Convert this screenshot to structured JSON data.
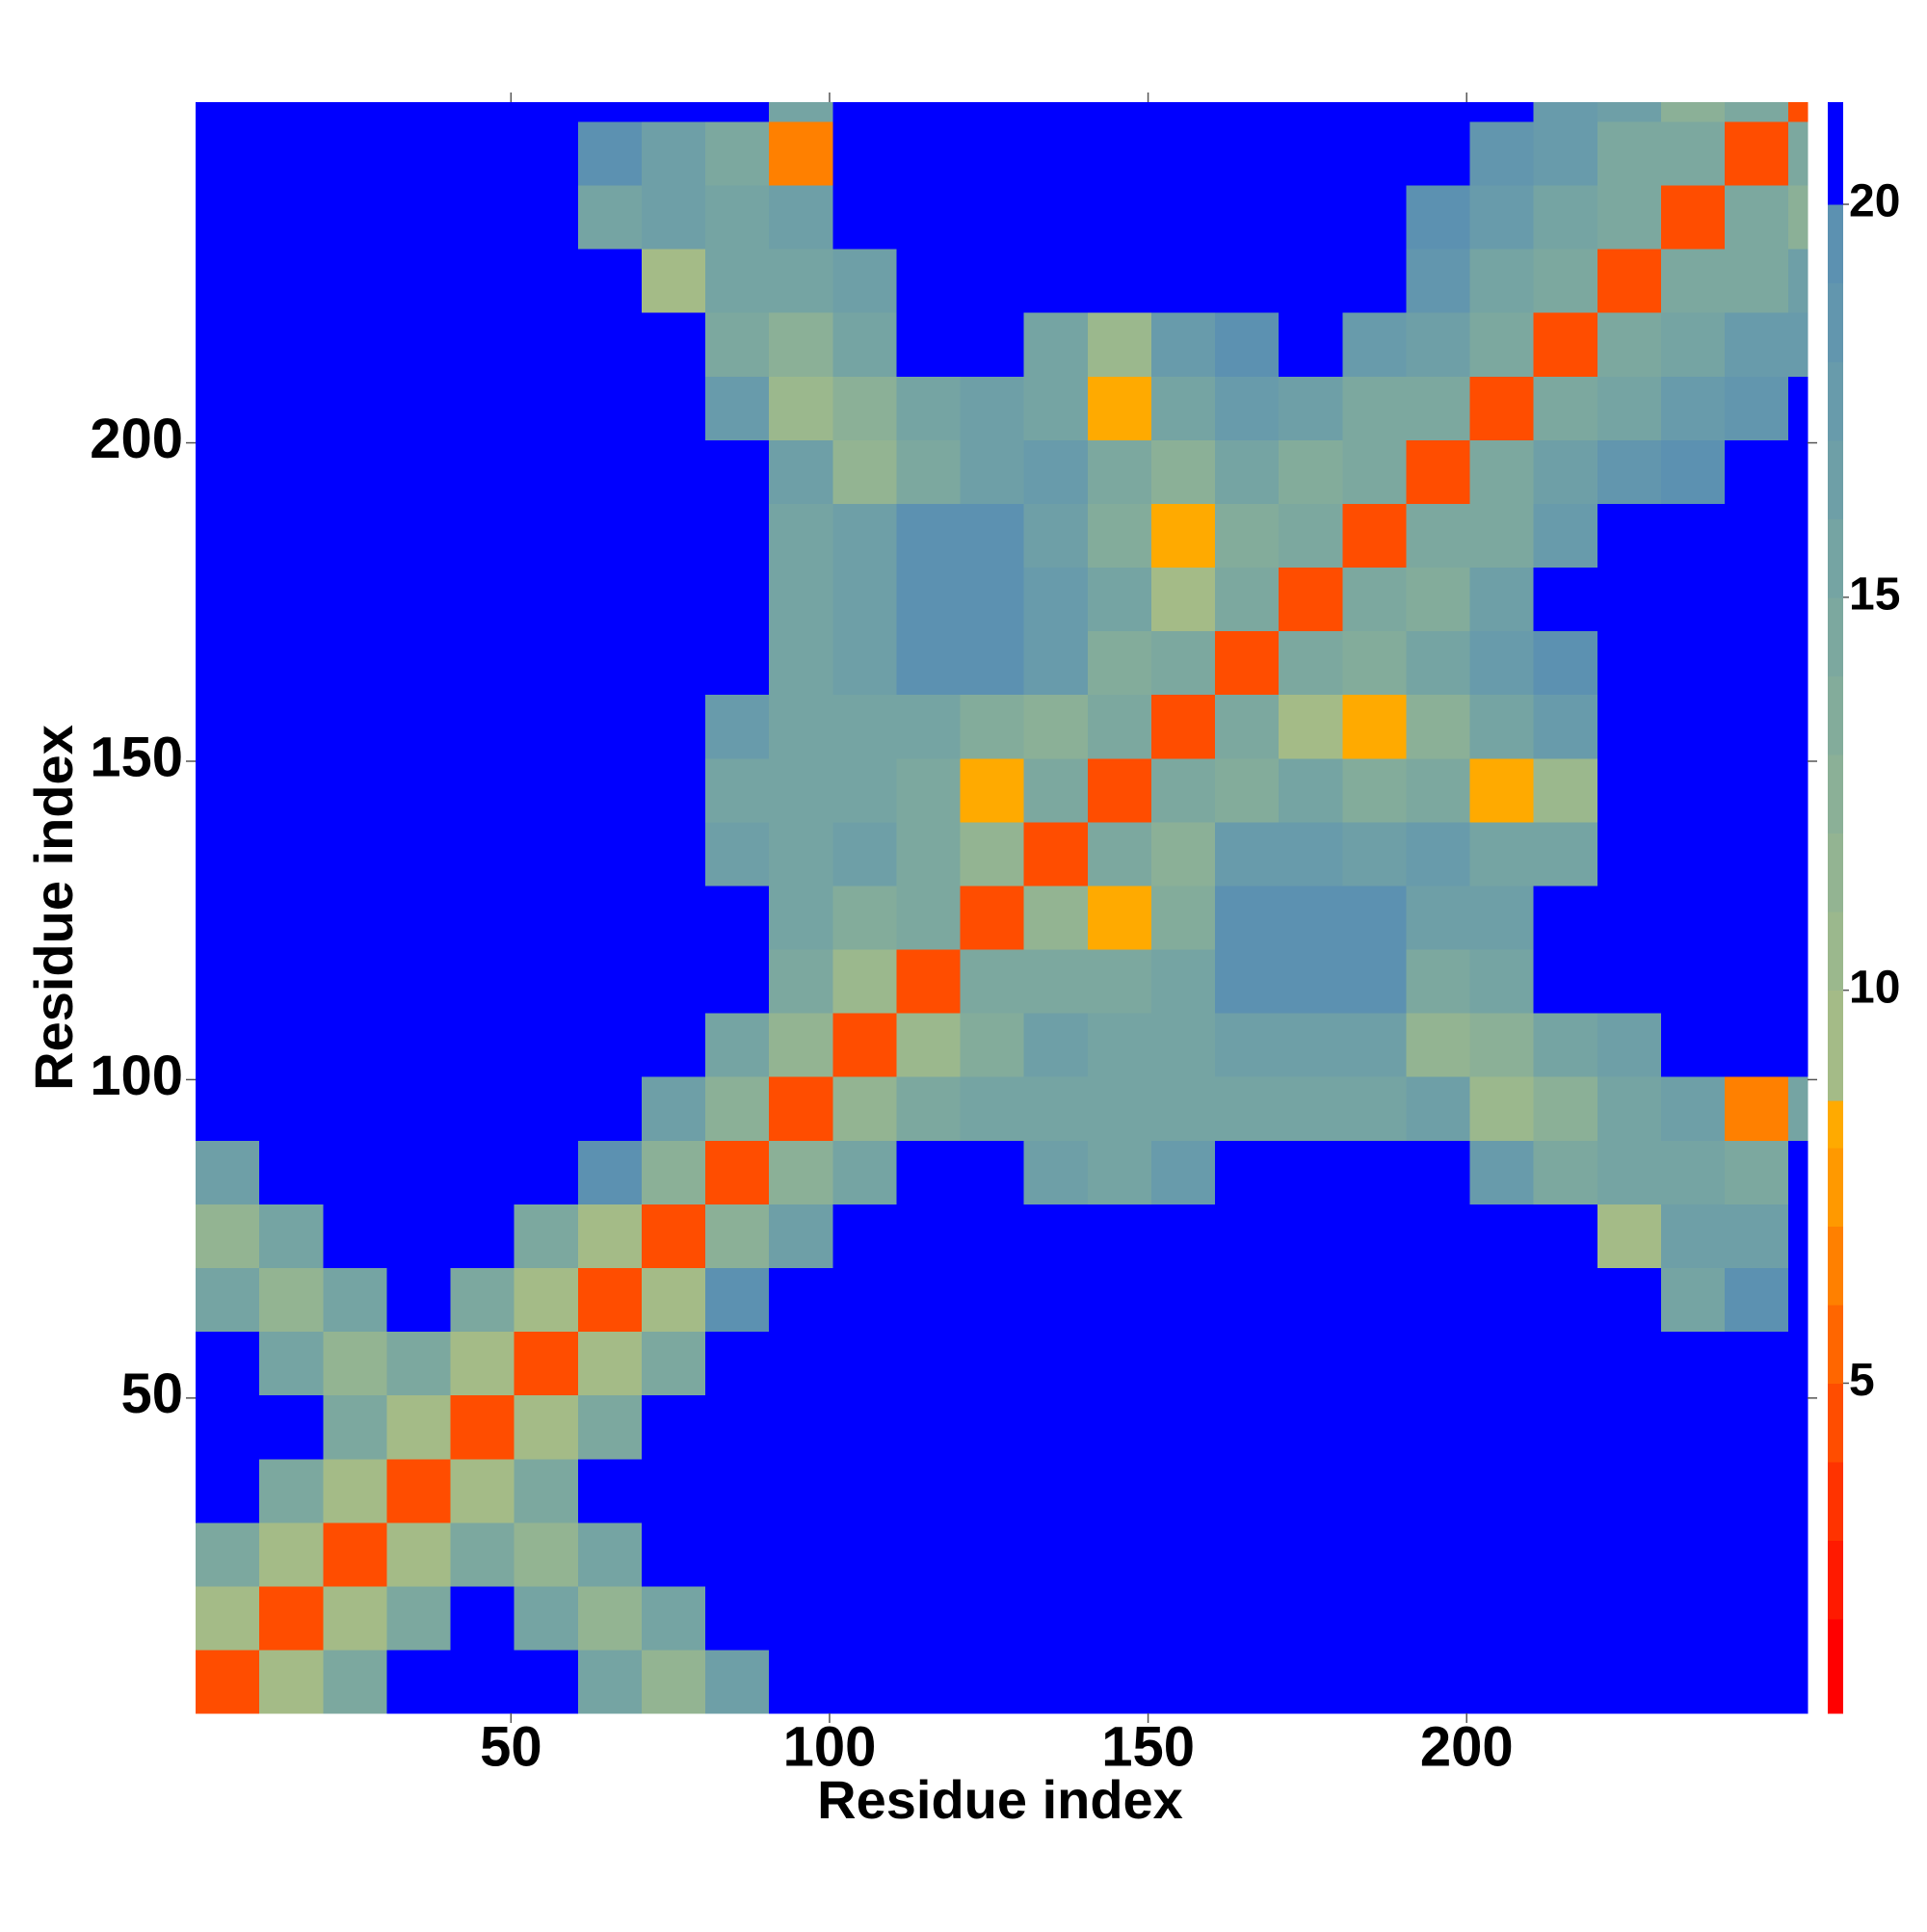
{
  "chart_data": {
    "type": "heatmap",
    "x_label": "Residue index",
    "y_label": "Residue index",
    "x_bins": [
      0.5,
      10.5,
      20.5,
      30.5,
      40.5,
      50.5,
      60.5,
      70.5,
      80.5,
      90.5,
      100.5,
      110.5,
      120.5,
      130.5,
      140.5,
      150.5,
      160.5,
      170.5,
      180.5,
      190.5,
      200.5,
      210.5,
      220.5,
      230.5,
      240.5,
      250.5,
      253.5
    ],
    "y_bins": [
      0.5,
      10.5,
      20.5,
      30.5,
      40.5,
      50.5,
      60.5,
      70.5,
      80.5,
      90.5,
      100.5,
      110.5,
      120.5,
      130.5,
      140.5,
      150.5,
      160.5,
      170.5,
      180.5,
      190.5,
      200.5,
      210.5,
      220.5,
      230.5,
      240.5,
      250.5,
      253.5
    ],
    "xlim": [
      0.5,
      253.5
    ],
    "ylim": [
      0.5,
      253.5
    ],
    "xticks": [
      50,
      100,
      150,
      200
    ],
    "yticks": [
      50,
      100,
      150,
      200
    ],
    "values": [
      [
        4,
        9,
        14,
        21,
        21,
        21,
        15,
        11,
        16,
        21,
        21,
        21,
        21,
        21,
        21,
        21,
        21,
        21,
        21,
        21,
        21,
        21,
        21,
        21,
        20,
        21
      ],
      [
        9,
        4,
        9,
        14,
        21,
        15,
        11,
        15,
        21,
        21,
        21,
        21,
        21,
        21,
        21,
        21,
        21,
        21,
        21,
        21,
        21,
        21,
        21,
        21,
        20,
        21
      ],
      [
        14,
        9,
        4,
        9,
        14,
        11,
        15,
        21,
        21,
        21,
        21,
        21,
        21,
        21,
        21,
        21,
        21,
        21,
        21,
        21,
        21,
        21,
        21,
        21,
        21,
        21
      ],
      [
        21,
        14,
        9,
        4,
        9,
        14,
        21,
        21,
        21,
        21,
        21,
        21,
        21,
        21,
        21,
        21,
        21,
        21,
        21,
        21,
        21,
        21,
        21,
        21,
        21,
        21
      ],
      [
        21,
        21,
        14,
        9,
        4,
        9,
        14,
        21,
        21,
        21,
        21,
        21,
        21,
        21,
        21,
        21,
        21,
        21,
        21,
        21,
        21,
        21,
        21,
        21,
        21,
        21
      ],
      [
        21,
        15,
        11,
        14,
        9,
        4,
        9,
        14,
        21,
        21,
        21,
        21,
        21,
        21,
        21,
        21,
        21,
        21,
        21,
        21,
        21,
        21,
        21,
        21,
        21,
        21
      ],
      [
        15,
        11,
        15,
        21,
        14,
        9,
        4,
        9,
        19,
        21,
        21,
        21,
        21,
        21,
        21,
        21,
        21,
        21,
        21,
        21,
        21,
        21,
        21,
        15,
        19,
        21
      ],
      [
        11,
        15,
        21,
        21,
        21,
        14,
        9,
        4,
        12,
        16,
        21,
        21,
        21,
        21,
        21,
        21,
        21,
        21,
        21,
        21,
        21,
        21,
        9,
        16,
        16,
        21
      ],
      [
        16,
        21,
        21,
        21,
        21,
        21,
        19,
        12,
        4,
        12,
        15,
        21,
        21,
        16,
        15,
        17,
        21,
        21,
        21,
        21,
        17,
        14,
        15,
        15,
        14,
        21
      ],
      [
        21,
        21,
        21,
        21,
        21,
        21,
        21,
        16,
        12,
        4,
        11,
        14,
        15,
        15,
        15,
        15,
        15,
        15,
        15,
        16,
        10,
        12,
        15,
        16,
        6,
        15
      ],
      [
        21,
        21,
        21,
        21,
        21,
        21,
        21,
        21,
        15,
        11,
        4,
        10,
        13,
        16,
        15,
        15,
        16,
        16,
        16,
        11,
        12,
        15,
        16,
        21,
        21,
        21
      ],
      [
        21,
        21,
        21,
        21,
        21,
        21,
        21,
        21,
        21,
        14,
        10,
        4,
        14,
        14,
        14,
        15,
        19,
        19,
        19,
        14,
        15,
        21,
        21,
        21,
        21,
        21
      ],
      [
        21,
        21,
        21,
        21,
        21,
        21,
        21,
        21,
        21,
        15,
        13,
        14,
        4,
        11,
        8,
        13,
        19,
        19,
        19,
        16,
        16,
        21,
        21,
        21,
        21,
        21
      ],
      [
        21,
        21,
        21,
        21,
        21,
        21,
        21,
        21,
        16,
        15,
        16,
        14,
        11,
        4,
        14,
        12,
        17,
        17,
        16,
        17,
        15,
        15,
        21,
        21,
        21,
        21
      ],
      [
        21,
        21,
        21,
        21,
        21,
        21,
        21,
        21,
        15,
        15,
        15,
        14,
        8,
        14,
        4,
        14,
        13,
        15,
        13,
        14,
        8,
        10,
        21,
        21,
        21,
        21
      ],
      [
        21,
        21,
        21,
        21,
        21,
        21,
        21,
        21,
        17,
        15,
        15,
        15,
        13,
        12,
        14,
        4,
        14,
        9,
        8,
        12,
        15,
        17,
        21,
        21,
        21,
        21
      ],
      [
        21,
        21,
        21,
        21,
        21,
        21,
        21,
        21,
        21,
        15,
        16,
        19,
        19,
        17,
        13,
        14,
        4,
        14,
        13,
        15,
        17,
        19,
        21,
        21,
        21,
        21
      ],
      [
        21,
        21,
        21,
        21,
        21,
        21,
        21,
        21,
        21,
        15,
        16,
        19,
        19,
        17,
        15,
        9,
        14,
        4,
        14,
        13,
        16,
        21,
        21,
        21,
        21,
        21
      ],
      [
        21,
        21,
        21,
        21,
        21,
        21,
        21,
        21,
        21,
        15,
        16,
        19,
        19,
        16,
        13,
        8,
        13,
        14,
        4,
        14,
        14,
        17,
        21,
        21,
        21,
        21
      ],
      [
        21,
        21,
        21,
        21,
        21,
        21,
        21,
        21,
        21,
        16,
        11,
        14,
        16,
        17,
        14,
        12,
        15,
        13,
        14,
        4,
        14,
        16,
        18,
        19,
        21,
        21
      ],
      [
        21,
        21,
        21,
        21,
        21,
        21,
        21,
        21,
        17,
        10,
        12,
        15,
        16,
        15,
        8,
        15,
        17,
        16,
        14,
        14,
        4,
        14,
        15,
        17,
        18,
        21
      ],
      [
        21,
        21,
        21,
        21,
        21,
        21,
        21,
        21,
        14,
        12,
        15,
        21,
        21,
        15,
        10,
        17,
        19,
        21,
        17,
        16,
        14,
        4,
        14,
        15,
        17,
        17
      ],
      [
        21,
        21,
        21,
        21,
        21,
        21,
        21,
        9,
        15,
        15,
        16,
        21,
        21,
        21,
        21,
        21,
        21,
        21,
        21,
        18,
        15,
        14,
        4,
        14,
        14,
        16
      ],
      [
        21,
        21,
        21,
        21,
        21,
        21,
        15,
        16,
        15,
        16,
        21,
        21,
        21,
        21,
        21,
        21,
        21,
        21,
        21,
        19,
        17,
        15,
        14,
        4,
        14,
        12
      ],
      [
        20,
        20,
        21,
        21,
        21,
        21,
        19,
        16,
        14,
        6,
        21,
        21,
        21,
        21,
        21,
        21,
        21,
        21,
        21,
        21,
        18,
        17,
        14,
        14,
        4,
        14
      ],
      [
        21,
        21,
        21,
        21,
        21,
        21,
        21,
        21,
        21,
        15,
        21,
        21,
        21,
        21,
        21,
        21,
        21,
        21,
        21,
        21,
        21,
        17,
        16,
        12,
        14,
        4
      ]
    ],
    "colorbar": {
      "lim": [
        0.8,
        21.3
      ],
      "ticks": [
        5,
        10,
        15,
        20
      ],
      "levels": [
        0.8,
        2,
        3,
        4,
        5,
        6,
        7,
        8,
        8.6,
        10,
        11,
        12,
        13,
        14,
        15,
        16,
        17,
        18,
        19,
        20,
        21.3
      ],
      "colors": [
        "#ff0000",
        "#ff1a00",
        "#ff3300",
        "#ff4d00",
        "#ff6600",
        "#ff8000",
        "#ff9900",
        "#ffaa00",
        "#a4bb87",
        "#9bb88d",
        "#93b492",
        "#8bb097",
        "#83ac9b",
        "#7ca89f",
        "#75a4a3",
        "#6e9fa7",
        "#689bab",
        "#6296ae",
        "#5c91b1",
        "#0000ff"
      ]
    }
  }
}
